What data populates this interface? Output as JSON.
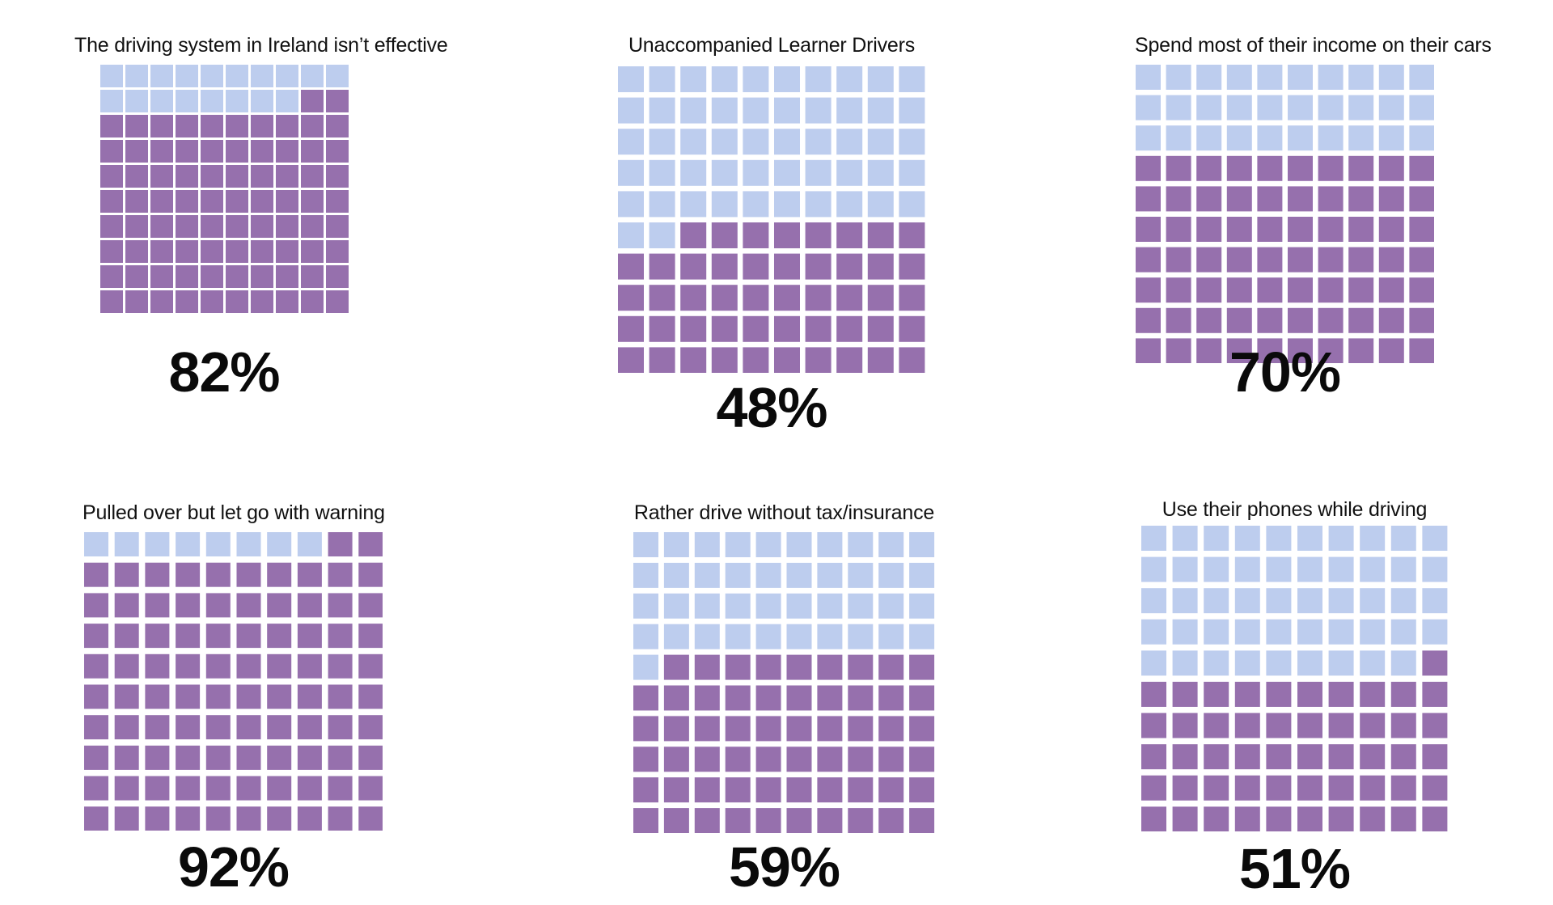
{
  "chart_data": [
    {
      "type": "waffle",
      "title": "The driving system in Ireland isn’t effective",
      "value_percent": 82,
      "label": "82%"
    },
    {
      "type": "waffle",
      "title": "Unaccompanied Learner Drivers",
      "value_percent": 48,
      "label": "48%"
    },
    {
      "type": "waffle",
      "title": "Spend most of their income on their cars",
      "value_percent": 70,
      "label": "70%"
    },
    {
      "type": "waffle",
      "title": "Pulled over but let go with warning",
      "value_percent": 92,
      "label": "92%"
    },
    {
      "type": "waffle",
      "title": "Rather drive without tax/insurance",
      "value_percent": 59,
      "label": "59%"
    },
    {
      "type": "waffle",
      "title": "Use their phones while driving",
      "value_percent": 51,
      "label": "51%"
    }
  ],
  "colors": {
    "filled": "#9670ad",
    "empty": "#bdcdee",
    "text": "#0a0a0a"
  }
}
